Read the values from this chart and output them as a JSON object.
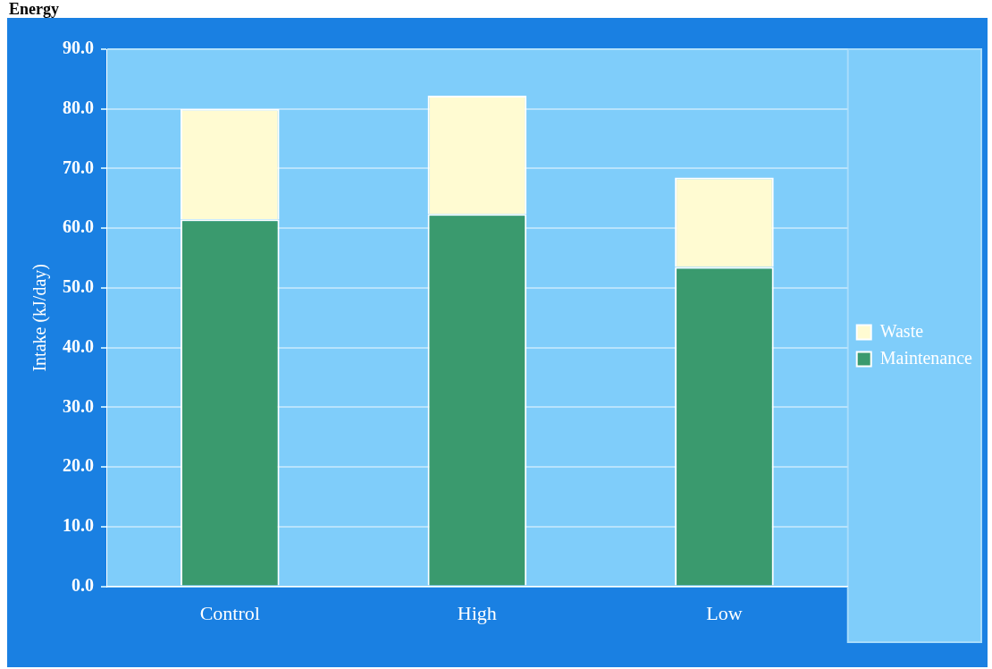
{
  "chart_data": {
    "type": "bar",
    "title": "Energy",
    "ylabel": "Intake (kJ/day)",
    "categories": [
      "Control",
      "High",
      "Low"
    ],
    "stacked": true,
    "series": [
      {
        "name": "Maintenance",
        "color": "#3a9a6e",
        "values": [
          61.5,
          62.4,
          53.5
        ]
      },
      {
        "name": "Waste",
        "color": "#fffbd2",
        "values": [
          18.5,
          19.8,
          15.0
        ]
      }
    ],
    "ylim": [
      0,
      90
    ],
    "yticks": [
      {
        "value": 0,
        "label": "0.0"
      },
      {
        "value": 10,
        "label": "10.0"
      },
      {
        "value": 20,
        "label": "20.0"
      },
      {
        "value": 30,
        "label": "30.0"
      },
      {
        "value": 40,
        "label": "40.0"
      },
      {
        "value": 50,
        "label": "50.0"
      },
      {
        "value": 60,
        "label": "60.0"
      },
      {
        "value": 70,
        "label": "70.0"
      },
      {
        "value": 80,
        "label": "80.0"
      },
      {
        "value": 90,
        "label": "90.0"
      }
    ],
    "grid": "y",
    "legend": "right"
  }
}
